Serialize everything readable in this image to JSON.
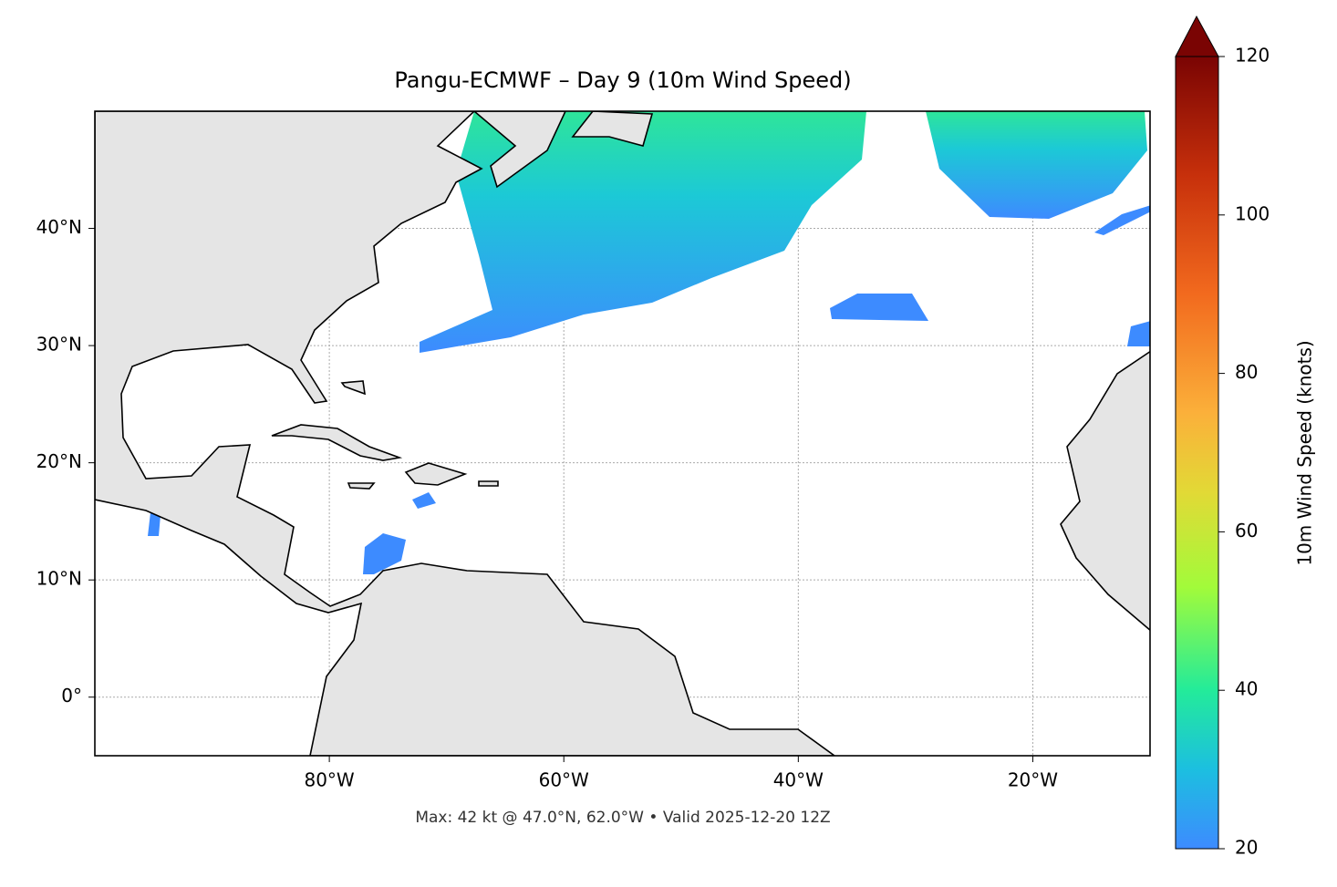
{
  "chart_data": {
    "type": "map",
    "title": "Pangu-ECMWF – Day 9 (10m Wind Speed)",
    "footer": "Max: 42 kt @ 47.0°N, 62.0°W • Valid 2025-12-20 12Z",
    "xlim": [
      -100,
      -10
    ],
    "ylim": [
      -5,
      50
    ],
    "xticks": [
      {
        "value": -80,
        "label": "80°W"
      },
      {
        "value": -60,
        "label": "60°W"
      },
      {
        "value": -40,
        "label": "40°W"
      },
      {
        "value": -20,
        "label": "20°W"
      }
    ],
    "yticks": [
      {
        "value": 0,
        "label": "0°"
      },
      {
        "value": 10,
        "label": "10°N"
      },
      {
        "value": 20,
        "label": "20°N"
      },
      {
        "value": 30,
        "label": "30°N"
      },
      {
        "value": 40,
        "label": "40°N"
      }
    ],
    "grid": true,
    "colorbar": {
      "label": "10m Wind Speed (knots)",
      "lim": [
        20,
        120
      ],
      "ticks": [
        20,
        40,
        60,
        80,
        100,
        120
      ]
    }
  }
}
